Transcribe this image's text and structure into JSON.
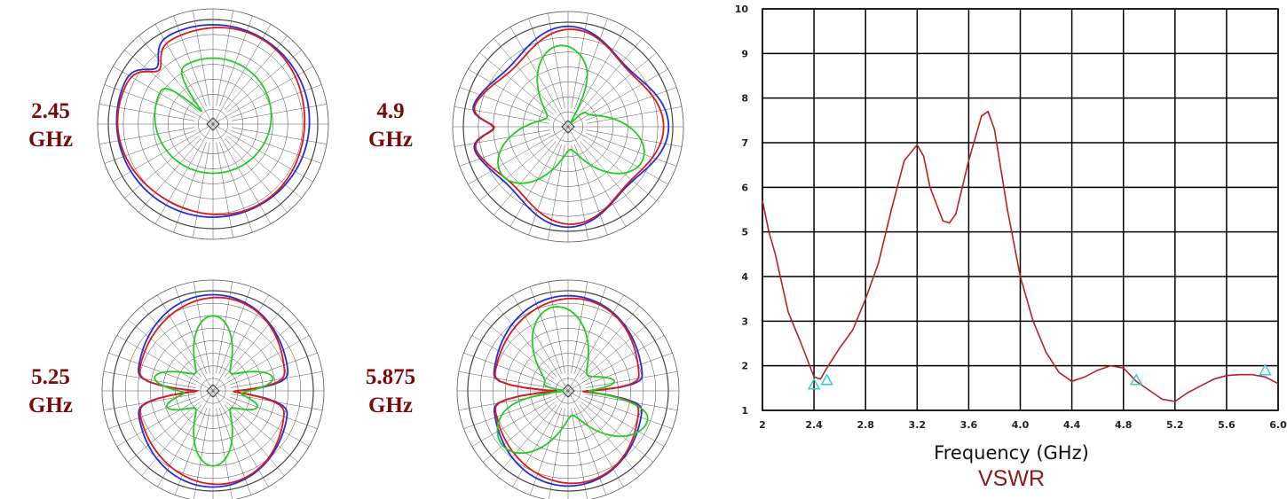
{
  "polar_plots": [
    {
      "freq": "2.45",
      "unit": "GHz"
    },
    {
      "freq": "4.9",
      "unit": "GHz"
    },
    {
      "freq": "5.25",
      "unit": "GHz"
    },
    {
      "freq": "5.875",
      "unit": "GHz"
    }
  ],
  "colors": {
    "label": "#7a0a0a",
    "blue": "#1f2fe0",
    "red": "#e01818",
    "green": "#22cc22",
    "vswr": "#b52222",
    "marker": "#33cccc",
    "title": "#8b1a1a"
  },
  "chart_data": [
    {
      "type": "line",
      "title": "VSWR",
      "xlabel": "Frequency (GHz)",
      "ylabel": "",
      "xlim": [
        2,
        6
      ],
      "ylim": [
        1,
        10
      ],
      "xticks": [
        "2",
        "2.4",
        "2.8",
        "3.2",
        "3.6",
        "4.0",
        "4.4",
        "4.8",
        "5.2",
        "5.6",
        "6.0"
      ],
      "yticks": [
        "1",
        "2",
        "3",
        "4",
        "5",
        "6",
        "7",
        "8",
        "9",
        "10"
      ],
      "grid": true,
      "series": [
        {
          "x": [
            2.0,
            2.05,
            2.1,
            2.2,
            2.3,
            2.4,
            2.45,
            2.5,
            2.6,
            2.7,
            2.8,
            2.9,
            3.0,
            3.1,
            3.2,
            3.25,
            3.3,
            3.4,
            3.45,
            3.5,
            3.6,
            3.7,
            3.75,
            3.8,
            3.9,
            4.0,
            4.1,
            4.2,
            4.3,
            4.4,
            4.5,
            4.6,
            4.7,
            4.8,
            4.9,
            5.0,
            5.1,
            5.2,
            5.3,
            5.4,
            5.5,
            5.6,
            5.7,
            5.8,
            5.9,
            6.0
          ],
          "y": [
            5.7,
            5.0,
            4.5,
            3.2,
            2.5,
            1.75,
            1.7,
            1.95,
            2.4,
            2.8,
            3.5,
            4.3,
            5.5,
            6.6,
            6.95,
            6.7,
            6.0,
            5.25,
            5.2,
            5.4,
            6.6,
            7.6,
            7.7,
            7.3,
            5.5,
            4.0,
            3.0,
            2.3,
            1.85,
            1.65,
            1.75,
            1.9,
            2.0,
            1.95,
            1.65,
            1.45,
            1.25,
            1.2,
            1.4,
            1.55,
            1.7,
            1.78,
            1.8,
            1.8,
            1.75,
            1.6
          ]
        }
      ],
      "markers": [
        {
          "x": 2.4,
          "y": 1.58
        },
        {
          "x": 2.5,
          "y": 1.68
        },
        {
          "x": 4.9,
          "y": 1.68
        },
        {
          "x": 5.9,
          "y": 1.9
        }
      ]
    }
  ]
}
